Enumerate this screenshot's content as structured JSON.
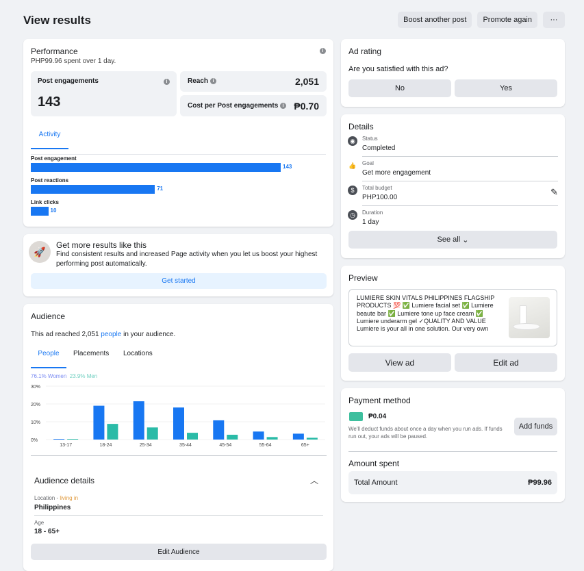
{
  "header": {
    "title": "View results",
    "buttons": [
      "Boost another post",
      "Promote again",
      "···"
    ]
  },
  "performance": {
    "title": "Performance",
    "spent": "PHP99.96 spent over 1 day.",
    "engagements_label": "Post engagements",
    "engagements_value": "143",
    "reach_label": "Reach",
    "reach_value": "2,051",
    "cpe_label": "Cost per Post engagements",
    "cpe_value": "₱0.70",
    "tab": "Activity",
    "bars": [
      {
        "label": "Post engagement",
        "value": 143
      },
      {
        "label": "Post reactions",
        "value": 71
      },
      {
        "label": "Link clicks",
        "value": 10
      }
    ]
  },
  "promo": {
    "title": "Get more results like this",
    "text": "Find consistent results and increased Page activity when you let us boost your highest performing post automatically.",
    "button": "Get started"
  },
  "audience": {
    "title": "Audience",
    "reached_prefix": "This ad reached 2,051 ",
    "reached_link": "people",
    "reached_suffix": " in your audience.",
    "tabs": [
      "People",
      "Placements",
      "Locations"
    ],
    "women": "76.1% Women",
    "men": "23.9% Men",
    "details_title": "Audience details",
    "location_label": "Location - ",
    "location_living": "living in",
    "location_value": "Philippines",
    "age_label": "Age",
    "age_value": "18 - 65+",
    "edit_button": "Edit Audience"
  },
  "chart_data": {
    "type": "bar",
    "categories": [
      "13-17",
      "18-24",
      "25-34",
      "35-44",
      "45-54",
      "55-64",
      "65+"
    ],
    "series": [
      {
        "name": "Women",
        "color": "#1877f2",
        "values": [
          0.3,
          19,
          21.5,
          18,
          10.8,
          4.5,
          3.3
        ]
      },
      {
        "name": "Men",
        "color": "#2abba7",
        "values": [
          0.3,
          8.8,
          6.8,
          3.8,
          2.7,
          1.4,
          1.0
        ]
      }
    ],
    "yticks": [
      "0%",
      "10%",
      "20%",
      "30%"
    ],
    "ylim": [
      0,
      30
    ]
  },
  "rating": {
    "title": "Ad rating",
    "question": "Are you satisfied with this ad?",
    "no": "No",
    "yes": "Yes"
  },
  "details": {
    "title": "Details",
    "rows": [
      {
        "label": "Status",
        "value": "Completed",
        "icon": "◉"
      },
      {
        "label": "Goal",
        "value": "Get more engagement",
        "icon": "👍"
      },
      {
        "label": "Total budget",
        "value": "PHP100.00",
        "icon": "$"
      },
      {
        "label": "Duration",
        "value": "1 day",
        "icon": "◷"
      }
    ],
    "see_all": "See all"
  },
  "preview": {
    "title": "Preview",
    "text": "LUMIERE SKIN VITALS PHILIPPINES FLAGSHIP PRODUCTS 💯 ✅ Lumiere facial set ✅ Lumiere beaute bar ✅ Lumiere tone up face cream ✅ Lumiere underarm gel ✓QUALITY AND VALUE Lumiere is your all in one solution. Our very own formulation is carefully...",
    "view": "View ad",
    "edit": "Edit ad"
  },
  "payment": {
    "title": "Payment method",
    "balance": "₱0.04",
    "note": "We'll deduct funds about once a day when you run ads. If funds run out, your ads will be paused.",
    "add_funds": "Add funds",
    "spent_title": "Amount spent",
    "total_label": "Total Amount",
    "total_value": "₱99.96"
  }
}
